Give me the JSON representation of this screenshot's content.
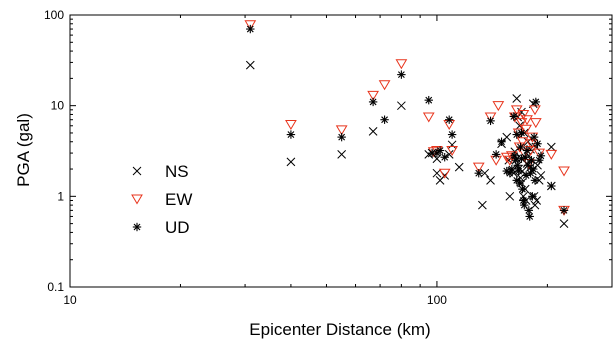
{
  "chart_data": {
    "type": "scatter",
    "xlabel": "Epicenter Distance  (km)",
    "ylabel": "PGA  (gal)",
    "x_scale": "log",
    "y_scale": "log",
    "xlim": [
      10,
      300
    ],
    "ylim": [
      0.1,
      100
    ],
    "x_tick_labels": [
      "10",
      "100"
    ],
    "y_tick_labels": [
      "0.1",
      "1",
      "10",
      "100"
    ],
    "grid": false,
    "legend_placement": "left-middle",
    "series": [
      {
        "name": "NS",
        "marker": "x",
        "color": "#000000",
        "points": [
          [
            31,
            28
          ],
          [
            40,
            2.4
          ],
          [
            55,
            2.9
          ],
          [
            67,
            5.2
          ],
          [
            80,
            10
          ],
          [
            95,
            2.9
          ],
          [
            97,
            3.0
          ],
          [
            100,
            2.6
          ],
          [
            102,
            1.5
          ],
          [
            105,
            1.7
          ],
          [
            108,
            2.9
          ],
          [
            110,
            3.7
          ],
          [
            115,
            2.1
          ],
          [
            100,
            1.8
          ],
          [
            133,
            0.8
          ],
          [
            135,
            1.8
          ],
          [
            140,
            1.5
          ],
          [
            150,
            3.8
          ],
          [
            155,
            4.5
          ],
          [
            157,
            2.5
          ],
          [
            160,
            1.9
          ],
          [
            162,
            1.8
          ],
          [
            163,
            3.1
          ],
          [
            165,
            2.6
          ],
          [
            167,
            2.0
          ],
          [
            169,
            1.6
          ],
          [
            170,
            1.4
          ],
          [
            171,
            1.9
          ],
          [
            172,
            1.0
          ],
          [
            174,
            1.2
          ],
          [
            175,
            0.9
          ],
          [
            176,
            2.3
          ],
          [
            178,
            2.8
          ],
          [
            180,
            2.1
          ],
          [
            182,
            1.9
          ],
          [
            184,
            1.0
          ],
          [
            185,
            0.8
          ],
          [
            187,
            0.9
          ],
          [
            188,
            2.2
          ],
          [
            190,
            1.5
          ],
          [
            192,
            1.7
          ],
          [
            165,
            12
          ],
          [
            170,
            8.5
          ],
          [
            183,
            10.5
          ],
          [
            205,
            3.5
          ],
          [
            222,
            0.5
          ],
          [
            205,
            1.3
          ],
          [
            158,
            1.0
          ],
          [
            166,
            7.5
          ],
          [
            168,
            6.0
          ],
          [
            173,
            5.0
          ],
          [
            177,
            4.0
          ],
          [
            186,
            3.5
          ],
          [
            180,
            3.3
          ]
        ]
      },
      {
        "name": "EW",
        "marker": "triangle-down",
        "color": "#e8341c",
        "points": [
          [
            31,
            78
          ],
          [
            40,
            6.2
          ],
          [
            55,
            5.4
          ],
          [
            67,
            13
          ],
          [
            72,
            17
          ],
          [
            80,
            29
          ],
          [
            95,
            7.5
          ],
          [
            98,
            3.1
          ],
          [
            100,
            3.2
          ],
          [
            105,
            1.8
          ],
          [
            108,
            6.2
          ],
          [
            110,
            3.2
          ],
          [
            130,
            2.1
          ],
          [
            140,
            7.5
          ],
          [
            145,
            2.5
          ],
          [
            147,
            10
          ],
          [
            155,
            2.7
          ],
          [
            158,
            2.5
          ],
          [
            160,
            2.8
          ],
          [
            163,
            7.5
          ],
          [
            165,
            9.0
          ],
          [
            167,
            5.0
          ],
          [
            168,
            3.5
          ],
          [
            170,
            6.5
          ],
          [
            171,
            4.0
          ],
          [
            172,
            8.0
          ],
          [
            173,
            3.0
          ],
          [
            175,
            5.5
          ],
          [
            176,
            7.0
          ],
          [
            178,
            2.3
          ],
          [
            180,
            3.2
          ],
          [
            182,
            4.5
          ],
          [
            185,
            9.0
          ],
          [
            190,
            3.0
          ],
          [
            205,
            2.9
          ],
          [
            222,
            1.9
          ],
          [
            222,
            0.7
          ],
          [
            186,
            6.5
          ],
          [
            181,
            3.8
          ]
        ]
      },
      {
        "name": "UD",
        "marker": "asterisk",
        "color": "#000000",
        "points": [
          [
            31,
            70
          ],
          [
            40,
            4.8
          ],
          [
            55,
            4.5
          ],
          [
            67,
            11
          ],
          [
            72,
            7.0
          ],
          [
            80,
            22
          ],
          [
            95,
            11.5
          ],
          [
            97,
            3.0
          ],
          [
            100,
            3.0
          ],
          [
            102,
            3.2
          ],
          [
            105,
            2.7
          ],
          [
            108,
            7.0
          ],
          [
            110,
            4.8
          ],
          [
            130,
            1.8
          ],
          [
            140,
            6.8
          ],
          [
            145,
            2.9
          ],
          [
            150,
            4.0
          ],
          [
            155,
            1.9
          ],
          [
            158,
            1.8
          ],
          [
            160,
            2.0
          ],
          [
            162,
            7.6
          ],
          [
            164,
            2.5
          ],
          [
            165,
            1.5
          ],
          [
            166,
            2.2
          ],
          [
            167,
            1.9
          ],
          [
            168,
            1.4
          ],
          [
            169,
            3.5
          ],
          [
            170,
            2.6
          ],
          [
            171,
            1.2
          ],
          [
            172,
            0.9
          ],
          [
            173,
            0.8
          ],
          [
            174,
            2.7
          ],
          [
            175,
            1.7
          ],
          [
            176,
            3.2
          ],
          [
            177,
            2.2
          ],
          [
            178,
            0.7
          ],
          [
            179,
            0.6
          ],
          [
            180,
            1.8
          ],
          [
            181,
            2.5
          ],
          [
            182,
            1.0
          ],
          [
            183,
            2.0
          ],
          [
            184,
            4.5
          ],
          [
            185,
            1.5
          ],
          [
            186,
            11
          ],
          [
            188,
            3.8
          ],
          [
            190,
            2.5
          ],
          [
            192,
            2.8
          ],
          [
            205,
            1.3
          ],
          [
            222,
            0.7
          ],
          [
            165,
            4.8
          ],
          [
            170,
            5.0
          ],
          [
            163,
            2.8
          ]
        ]
      }
    ]
  }
}
